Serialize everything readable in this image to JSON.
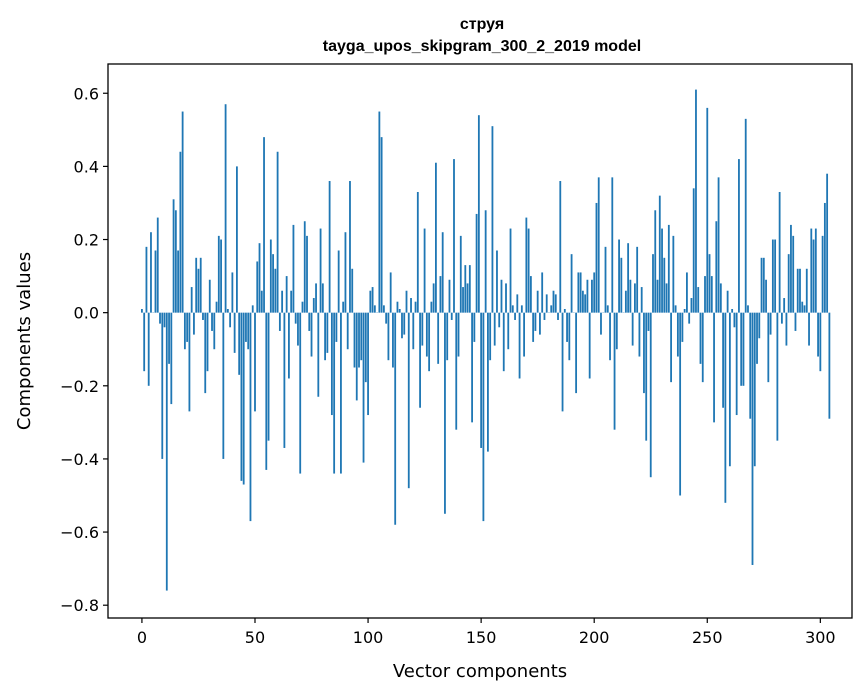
{
  "chart_data": {
    "type": "bar",
    "title": "струя",
    "subtitle": "tayga_upos_skipgram_300_2_2019 model",
    "xlabel": "Vector components",
    "ylabel": "Components values",
    "xlim": [
      -15,
      314
    ],
    "ylim": [
      -0.835,
      0.68
    ],
    "xticks": [
      0,
      50,
      100,
      150,
      200,
      250,
      300
    ],
    "xtick_labels": [
      "0",
      "50",
      "100",
      "150",
      "200",
      "250",
      "300"
    ],
    "yticks": [
      -0.8,
      -0.6,
      -0.4,
      -0.2,
      0.0,
      0.2,
      0.4,
      0.6
    ],
    "ytick_labels": [
      "−0.8",
      "−0.6",
      "−0.4",
      "−0.2",
      "0.0",
      "0.2",
      "0.4",
      "0.6"
    ],
    "grid": false,
    "bar_color": "#1f77b4",
    "series": [
      {
        "values": [
          0.01,
          -0.16,
          0.18,
          -0.2,
          0.22,
          0.0,
          0.17,
          0.26,
          -0.03,
          -0.4,
          -0.04,
          -0.76,
          -0.14,
          -0.25,
          0.31,
          0.28,
          0.17,
          0.44,
          0.55,
          -0.1,
          -0.08,
          -0.27,
          0.07,
          -0.06,
          0.15,
          0.12,
          0.15,
          -0.02,
          -0.22,
          -0.16,
          0.09,
          -0.05,
          -0.1,
          0.03,
          0.21,
          0.2,
          -0.4,
          0.57,
          0.01,
          -0.04,
          0.11,
          -0.11,
          0.4,
          -0.17,
          -0.46,
          -0.47,
          -0.08,
          -0.1,
          -0.57,
          0.02,
          -0.27,
          0.14,
          0.19,
          0.06,
          0.48,
          -0.43,
          -0.35,
          0.2,
          0.16,
          0.12,
          0.44,
          -0.05,
          0.06,
          -0.37,
          0.1,
          -0.18,
          0.06,
          0.24,
          -0.03,
          -0.09,
          -0.44,
          0.03,
          0.25,
          0.21,
          -0.05,
          -0.12,
          0.04,
          0.08,
          -0.23,
          0.23,
          0.08,
          -0.13,
          -0.11,
          0.36,
          -0.28,
          -0.44,
          -0.08,
          0.17,
          -0.44,
          0.03,
          0.22,
          -0.1,
          0.36,
          0.12,
          -0.15,
          -0.24,
          -0.15,
          -0.13,
          -0.41,
          -0.19,
          -0.28,
          0.06,
          0.07,
          0.02,
          0.0,
          0.55,
          0.48,
          0.02,
          -0.03,
          -0.13,
          0.11,
          -0.15,
          -0.58,
          0.03,
          0.01,
          -0.07,
          -0.06,
          0.06,
          -0.48,
          0.04,
          -0.1,
          0.03,
          0.33,
          -0.26,
          -0.09,
          0.23,
          -0.12,
          -0.16,
          0.03,
          0.08,
          0.41,
          -0.14,
          0.1,
          0.22,
          -0.55,
          -0.13,
          0.09,
          -0.02,
          0.42,
          -0.32,
          -0.12,
          0.21,
          0.07,
          0.13,
          0.08,
          0.13,
          -0.3,
          -0.08,
          0.27,
          0.54,
          -0.37,
          -0.57,
          0.28,
          -0.38,
          -0.13,
          0.51,
          -0.09,
          0.17,
          -0.04,
          0.09,
          -0.16,
          0.08,
          -0.1,
          0.23,
          0.02,
          -0.02,
          0.05,
          -0.18,
          0.02,
          -0.12,
          0.26,
          0.23,
          0.1,
          -0.08,
          -0.05,
          0.06,
          -0.06,
          0.11,
          -0.02,
          0.05,
          0.0,
          0.02,
          0.06,
          0.05,
          -0.02,
          0.36,
          -0.27,
          0.01,
          -0.08,
          -0.13,
          0.16,
          0.0,
          -0.22,
          0.11,
          0.11,
          0.06,
          0.05,
          0.09,
          -0.18,
          0.09,
          0.11,
          0.3,
          0.37,
          -0.06,
          0.0,
          0.18,
          0.02,
          -0.13,
          0.37,
          -0.32,
          -0.1,
          0.2,
          0.15,
          0.0,
          0.06,
          0.19,
          0.09,
          -0.09,
          0.08,
          0.18,
          -0.12,
          0.07,
          -0.22,
          -0.35,
          -0.05,
          -0.45,
          0.16,
          0.28,
          0.09,
          0.32,
          0.23,
          0.15,
          0.08,
          0.24,
          -0.19,
          0.21,
          0.02,
          -0.12,
          -0.5,
          -0.08,
          0.01,
          0.11,
          -0.03,
          0.04,
          0.34,
          0.61,
          0.07,
          -0.14,
          -0.19,
          0.1,
          0.56,
          0.16,
          0.1,
          -0.3,
          0.25,
          0.37,
          0.08,
          -0.26,
          -0.52,
          0.06,
          -0.42,
          0.01,
          -0.04,
          -0.28,
          0.42,
          -0.2,
          -0.2,
          0.53,
          0.02,
          -0.29,
          -0.69,
          -0.42,
          -0.14,
          -0.07,
          0.15,
          0.15,
          0.09,
          -0.19,
          -0.06,
          0.2,
          0.2,
          -0.35,
          0.33,
          -0.03,
          0.04,
          -0.09,
          0.16,
          0.24,
          0.21,
          -0.05,
          0.12,
          0.12,
          0.03,
          0.02,
          0.12,
          -0.09,
          0.23,
          0.2,
          0.23,
          -0.12,
          -0.16,
          0.21,
          0.3,
          0.38,
          -0.29
        ]
      }
    ]
  }
}
